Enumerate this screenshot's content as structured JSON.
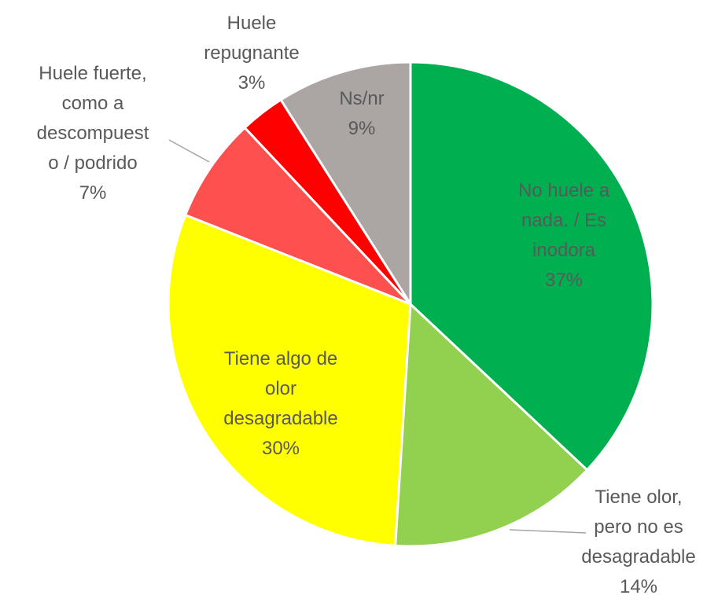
{
  "chart_data": {
    "type": "pie",
    "categories": [
      "No huele a\nnada. / Es\ninodora",
      "Tiene olor,\npero no es\ndesagradable",
      "Tiene algo de\nolor\ndesagradable",
      "Huele fuerte,\ncomo a\ndescompuest\no / podrido",
      "Huele\nrepugnante",
      "Ns/nr"
    ],
    "values": [
      37,
      14,
      30,
      7,
      3,
      9
    ],
    "value_labels": [
      "37%",
      "14%",
      "30%",
      "7%",
      "3%",
      "9%"
    ],
    "colors": [
      "#00b050",
      "#92d050",
      "#ffff00",
      "#ff5050",
      "#ff0000",
      "#aba6a4"
    ]
  }
}
